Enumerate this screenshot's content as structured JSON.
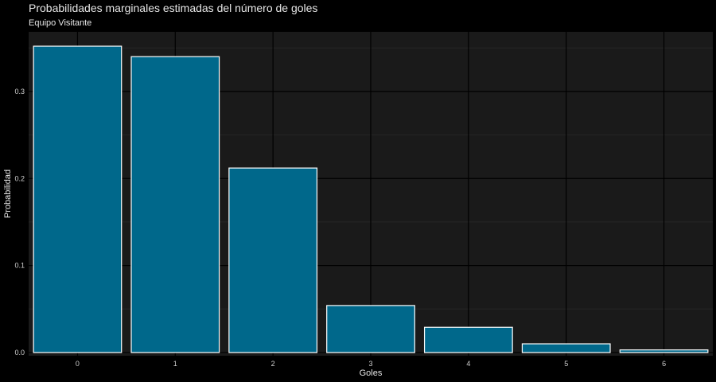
{
  "chart_data": {
    "type": "bar",
    "title": "Probabilidades marginales estimadas del número de goles",
    "subtitle": "Equipo Visitante",
    "xlabel": "Goles",
    "ylabel": "Probabilidad",
    "categories": [
      "0",
      "1",
      "2",
      "3",
      "4",
      "5",
      "6"
    ],
    "values": [
      0.352,
      0.34,
      0.212,
      0.054,
      0.029,
      0.01,
      0.003
    ],
    "ylim": [
      -0.0037,
      0.3685
    ],
    "yticks": [
      0.0,
      0.1,
      0.2,
      0.3
    ],
    "ytick_labels": [
      "0.0",
      "0.1",
      "0.2",
      "0.3"
    ],
    "grid": true,
    "colors": {
      "background": "#000000",
      "panel": "#1a1a1a",
      "grid_major": "#000000",
      "grid_minor": "#262626",
      "bar_fill": "#00688b",
      "bar_stroke": "#ffffff"
    }
  }
}
